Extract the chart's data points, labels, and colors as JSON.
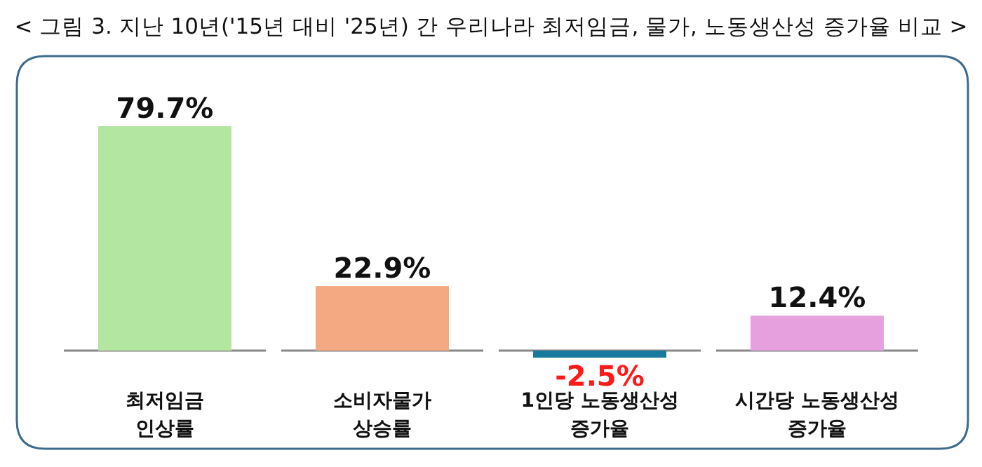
{
  "chart_data": {
    "type": "bar",
    "title": "< 그림 3. 지난 10년('15년 대비 '25년) 간 우리나라 최저임금, 물가, 노동생산성 증가율 비교 >",
    "categories": [
      "최저임금 인상률",
      "소비자물가 상승률",
      "1인당 노동생산성 증가율",
      "시간당 노동생산성 증가율"
    ],
    "values": [
      79.7,
      22.9,
      -2.5,
      12.4
    ],
    "value_labels": [
      "79.7%",
      "22.9%",
      "-2.5%",
      "12.4%"
    ],
    "colors": [
      "#b3e6a1",
      "#f4a982",
      "#17799c",
      "#e6a0de"
    ]
  }
}
